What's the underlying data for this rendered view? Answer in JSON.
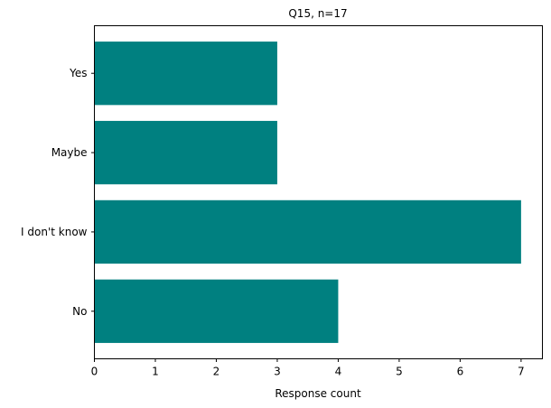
{
  "chart_data": {
    "type": "bar",
    "orientation": "horizontal",
    "title": "Q15, n=17",
    "xlabel": "Response count",
    "ylabel": "",
    "categories": [
      "No",
      "I don't know",
      "Maybe",
      "Yes"
    ],
    "values": [
      4,
      7,
      3,
      3
    ],
    "xlim": [
      0,
      7.35
    ],
    "xticks": [
      "0",
      "1",
      "2",
      "3",
      "4",
      "5",
      "6",
      "7"
    ],
    "grid": false,
    "bar_color": "#008080"
  }
}
